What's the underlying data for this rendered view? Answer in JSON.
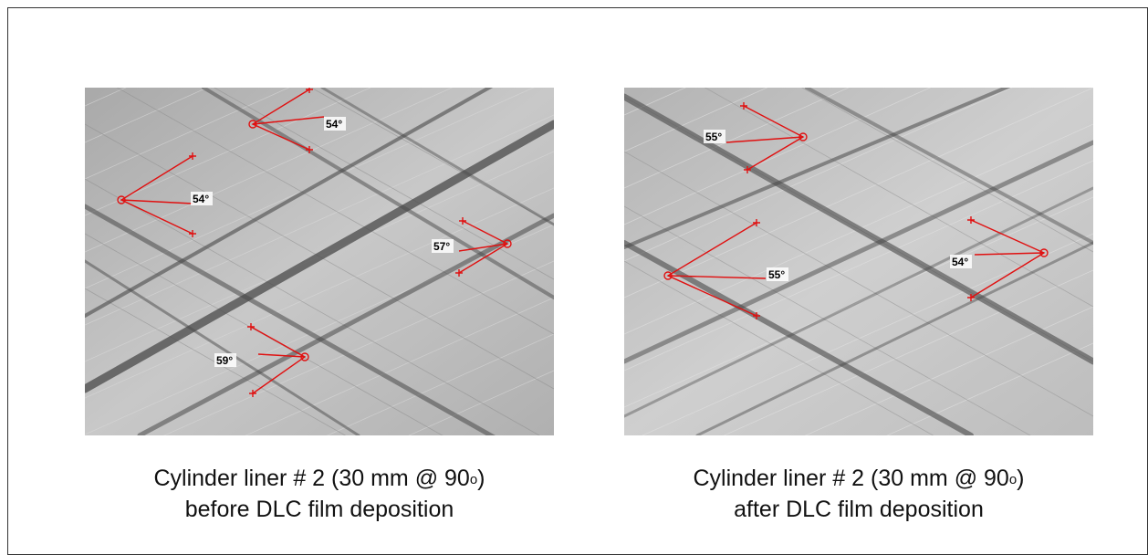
{
  "panels": [
    {
      "id": "left",
      "caption_line1": "Cylinder liner # 2 (30 mm @ 90",
      "caption_sup": "o",
      "caption_line1_end": ")",
      "caption_line2": "before DLC film deposition",
      "angles": [
        "54°",
        "54°",
        "57°",
        "59°"
      ]
    },
    {
      "id": "right",
      "caption_line1": "Cylinder liner # 2 (30 mm @ 90",
      "caption_sup": "o",
      "caption_line1_end": ")",
      "caption_line2": "after DLC film deposition",
      "angles": [
        "55°",
        "55°",
        "54°"
      ]
    }
  ],
  "colors": {
    "marker": "#e01010",
    "surface": "#b9b9b9",
    "groove": "#4a4a4a"
  }
}
